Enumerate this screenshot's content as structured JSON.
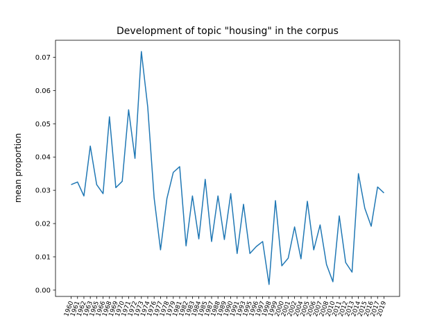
{
  "chart_data": {
    "type": "line",
    "title": "Development of topic \"housing\" in the corpus",
    "y_label": "mean proportion",
    "categories": [
      "1960",
      "1961",
      "1962",
      "1963",
      "1965",
      "1966",
      "1968",
      "1969",
      "1970",
      "1971",
      "1972",
      "1973",
      "1974",
      "1976",
      "1977",
      "1978",
      "1979",
      "1981",
      "1982",
      "1983",
      "1984",
      "1985",
      "1987",
      "1988",
      "1989",
      "1990",
      "1991",
      "1993",
      "1995",
      "1996",
      "1997",
      "1998",
      "1999",
      "2000",
      "2001",
      "2002",
      "2004",
      "2005",
      "2006",
      "2007",
      "2008",
      "2010",
      "2011",
      "2012",
      "2013",
      "2014",
      "2015",
      "2016",
      "2017",
      "2019"
    ],
    "series": [
      {
        "name": "housing",
        "color": "#1f77b4",
        "values": [
          0.0317,
          0.0325,
          0.0283,
          0.0433,
          0.0317,
          0.029,
          0.0521,
          0.0308,
          0.0327,
          0.0542,
          0.0396,
          0.0717,
          0.055,
          0.0277,
          0.0121,
          0.0275,
          0.0354,
          0.0371,
          0.0133,
          0.0283,
          0.0154,
          0.0333,
          0.0146,
          0.0283,
          0.0152,
          0.029,
          0.011,
          0.0258,
          0.011,
          0.0131,
          0.0146,
          0.0017,
          0.0269,
          0.0073,
          0.0096,
          0.019,
          0.0094,
          0.0267,
          0.0121,
          0.0196,
          0.0077,
          0.0025,
          0.0223,
          0.0083,
          0.0054,
          0.035,
          0.0246,
          0.0192,
          0.031,
          0.0292
        ]
      }
    ],
    "ylim": [
      -0.0019,
      0.0751
    ],
    "yticks": [
      {
        "value": 0,
        "label": "0.00"
      },
      0.01,
      0.02,
      0.03,
      0.04,
      0.05,
      0.06,
      0.07
    ],
    "grid": false
  }
}
